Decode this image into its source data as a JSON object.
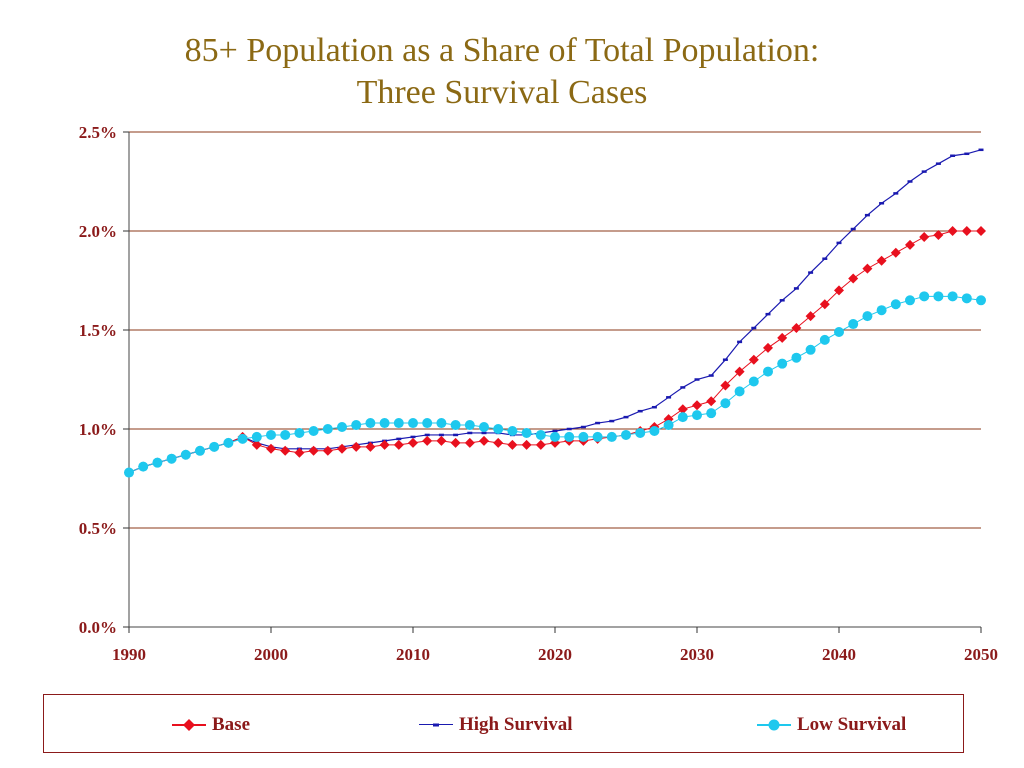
{
  "title_line1": "85+ Population as a Share of Total Population:",
  "title_line2": "Three Survival Cases",
  "colors": {
    "base": "#E8101E",
    "high": "#1A1AB0",
    "low": "#1EC8EE",
    "axis_text": "#8B1A1A",
    "grid": "#8B3A1A",
    "title": "#8B6914"
  },
  "chart_data": {
    "type": "line",
    "title": "85+ Population as a Share of Total Population: Three Survival Cases",
    "xlabel": "",
    "ylabel": "",
    "xlim": [
      1990,
      2050
    ],
    "ylim": [
      0,
      2.5
    ],
    "x_ticks": [
      "1990",
      "2000",
      "2010",
      "2020",
      "2030",
      "2040",
      "2050"
    ],
    "y_ticks": [
      "0.0%",
      "0.5%",
      "1.0%",
      "1.5%",
      "2.0%",
      "2.5%"
    ],
    "grid": "horizontal",
    "legend_position": "bottom",
    "x": [
      1990,
      1991,
      1992,
      1993,
      1994,
      1995,
      1996,
      1997,
      1998,
      1999,
      2000,
      2001,
      2002,
      2003,
      2004,
      2005,
      2006,
      2007,
      2008,
      2009,
      2010,
      2011,
      2012,
      2013,
      2014,
      2015,
      2016,
      2017,
      2018,
      2019,
      2020,
      2021,
      2022,
      2023,
      2024,
      2025,
      2026,
      2027,
      2028,
      2029,
      2030,
      2031,
      2032,
      2033,
      2034,
      2035,
      2036,
      2037,
      2038,
      2039,
      2040,
      2041,
      2042,
      2043,
      2044,
      2045,
      2046,
      2047,
      2048,
      2049,
      2050
    ],
    "series": [
      {
        "name": "Base",
        "marker": "diamond",
        "values": [
          0.78,
          0.81,
          0.83,
          0.85,
          0.87,
          0.89,
          0.91,
          0.93,
          0.96,
          0.92,
          0.9,
          0.89,
          0.88,
          0.89,
          0.89,
          0.9,
          0.91,
          0.91,
          0.92,
          0.92,
          0.93,
          0.94,
          0.94,
          0.93,
          0.93,
          0.94,
          0.93,
          0.92,
          0.92,
          0.92,
          0.93,
          0.94,
          0.94,
          0.95,
          0.96,
          0.97,
          0.99,
          1.01,
          1.05,
          1.1,
          1.12,
          1.14,
          1.22,
          1.29,
          1.35,
          1.41,
          1.46,
          1.51,
          1.57,
          1.63,
          1.7,
          1.76,
          1.81,
          1.85,
          1.89,
          1.93,
          1.97,
          1.98,
          2.0,
          2.0,
          2.0
        ]
      },
      {
        "name": "High Survival",
        "marker": "dash",
        "values": [
          0.78,
          0.81,
          0.83,
          0.85,
          0.87,
          0.89,
          0.91,
          0.93,
          0.96,
          0.93,
          0.91,
          0.9,
          0.9,
          0.9,
          0.9,
          0.91,
          0.92,
          0.93,
          0.94,
          0.95,
          0.96,
          0.97,
          0.97,
          0.97,
          0.98,
          0.98,
          0.98,
          0.97,
          0.97,
          0.98,
          0.99,
          1.0,
          1.01,
          1.03,
          1.04,
          1.06,
          1.09,
          1.11,
          1.16,
          1.21,
          1.25,
          1.27,
          1.35,
          1.44,
          1.51,
          1.58,
          1.65,
          1.71,
          1.79,
          1.86,
          1.94,
          2.01,
          2.08,
          2.14,
          2.19,
          2.25,
          2.3,
          2.34,
          2.38,
          2.39,
          2.41
        ]
      },
      {
        "name": "Low Survival",
        "marker": "circle",
        "values": [
          0.78,
          0.81,
          0.83,
          0.85,
          0.87,
          0.89,
          0.91,
          0.93,
          0.95,
          0.96,
          0.97,
          0.97,
          0.98,
          0.99,
          1.0,
          1.01,
          1.02,
          1.03,
          1.03,
          1.03,
          1.03,
          1.03,
          1.03,
          1.02,
          1.02,
          1.01,
          1.0,
          0.99,
          0.98,
          0.97,
          0.96,
          0.96,
          0.96,
          0.96,
          0.96,
          0.97,
          0.98,
          0.99,
          1.02,
          1.06,
          1.07,
          1.08,
          1.13,
          1.19,
          1.24,
          1.29,
          1.33,
          1.36,
          1.4,
          1.45,
          1.49,
          1.53,
          1.57,
          1.6,
          1.63,
          1.65,
          1.67,
          1.67,
          1.67,
          1.66,
          1.65
        ]
      }
    ]
  }
}
